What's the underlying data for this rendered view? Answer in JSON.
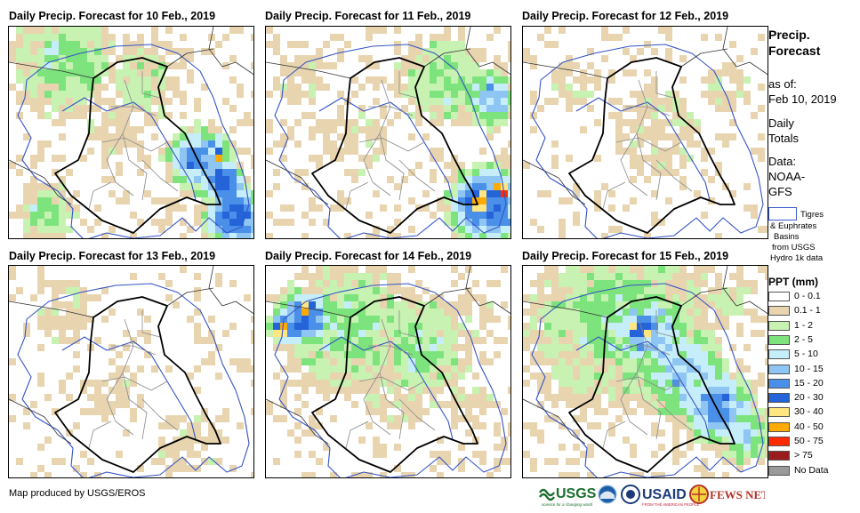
{
  "panels": [
    {
      "title": "Daily Precip. Forecast for 10 Feb., 2019"
    },
    {
      "title": "Daily Precip. Forecast for 11 Feb., 2019"
    },
    {
      "title": "Daily Precip. Forecast for 12 Feb., 2019"
    },
    {
      "title": "Daily Precip. Forecast for 13 Feb., 2019"
    },
    {
      "title": "Daily Precip. Forecast for 14 Feb., 2019"
    },
    {
      "title": "Daily Precip. Forecast for 15 Feb., 2019"
    }
  ],
  "sidebar": {
    "title_line1": "Precip.",
    "title_line2": "Forecast",
    "asof_line1": "as of:",
    "asof_line2": "Feb 10, 2019",
    "daily_line1": "Daily",
    "daily_line2": "Totals",
    "data_line1": "Data:",
    "data_line2": "NOAA-",
    "data_line3": "GFS",
    "basin_line1": "Tigres",
    "basin_line2": "& Euphrates",
    "basin_line3": "Basins",
    "basin_line4": "from USGS",
    "basin_line5": "Hydro 1k data"
  },
  "legend": {
    "title": "PPT (mm)",
    "items": [
      {
        "label": "0 - 0.1",
        "color": "#ffffff"
      },
      {
        "label": "0.1 - 1",
        "color": "#e8d5b0"
      },
      {
        "label": "1 - 2",
        "color": "#c8f2b2"
      },
      {
        "label": "2 - 5",
        "color": "#7de37d"
      },
      {
        "label": "5 - 10",
        "color": "#c5eefa"
      },
      {
        "label": "10 - 15",
        "color": "#8ec5f2"
      },
      {
        "label": "15 - 20",
        "color": "#4a8fe8"
      },
      {
        "label": "20 - 30",
        "color": "#2563d9"
      },
      {
        "label": "30 - 40",
        "color": "#ffe680"
      },
      {
        "label": "40 - 50",
        "color": "#ffaa00"
      },
      {
        "label": "50 - 75",
        "color": "#ff2a00"
      },
      {
        "label": "> 75",
        "color": "#9b1c1c"
      },
      {
        "label": "No Data",
        "color": "#9a9a9a"
      }
    ]
  },
  "credit": "Map produced by USGS/EROS",
  "logos": {
    "usgs": "USGS",
    "usgs_tag": "science for a changing world",
    "usaid": "USAID",
    "usaid_tag": "FROM THE AMERICAN PEOPLE",
    "fewsnet": "FEWS NET"
  }
}
